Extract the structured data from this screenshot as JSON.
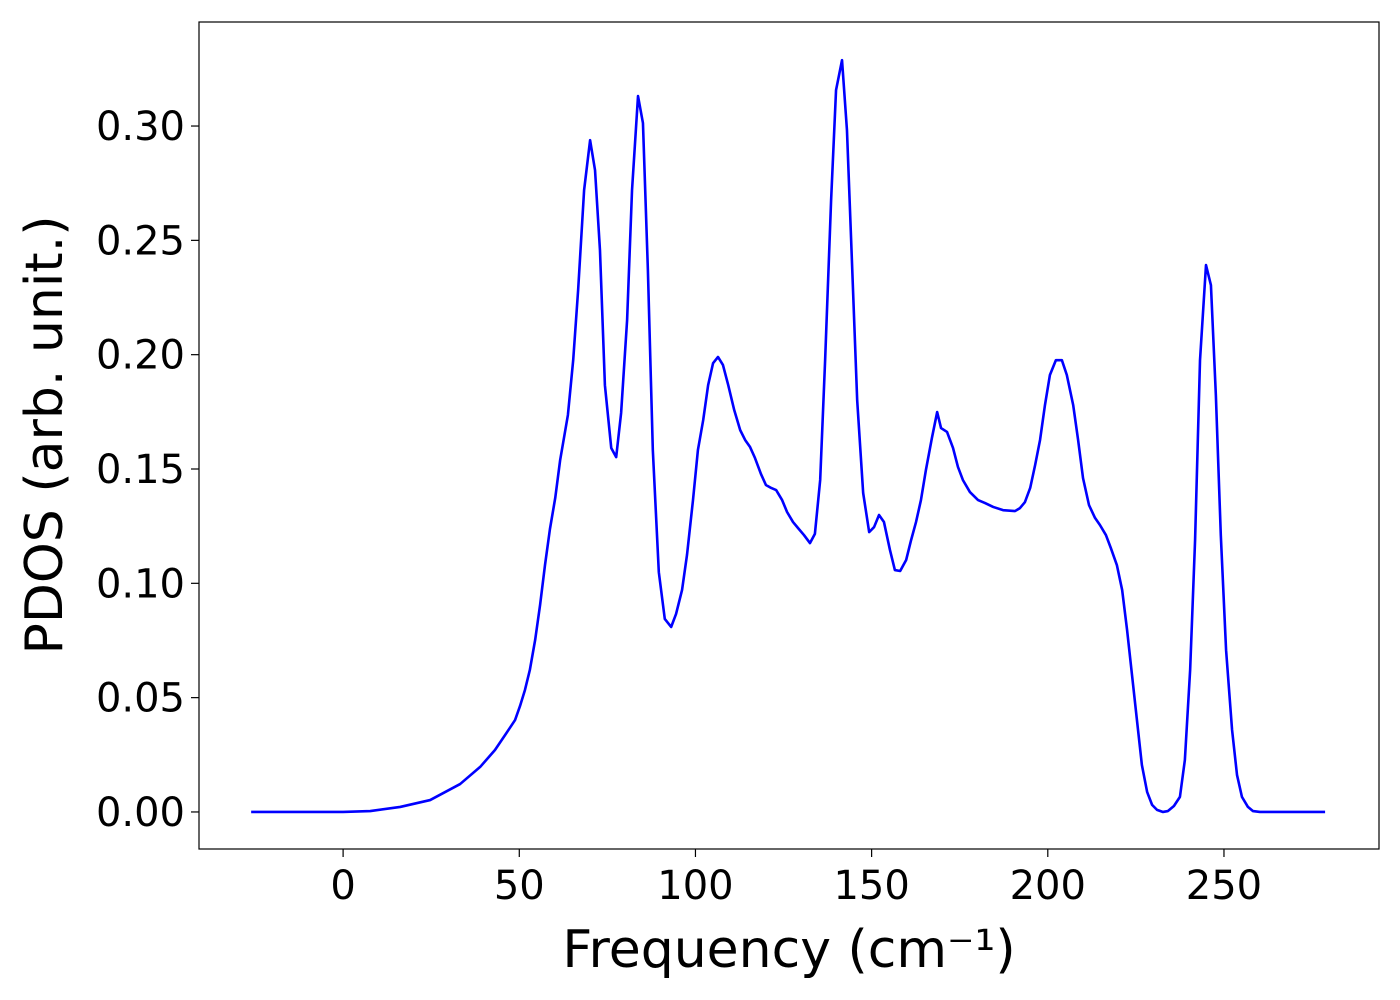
{
  "chart_data": {
    "type": "line",
    "xlabel": "Frequency (cm⁻¹)",
    "ylabel": "PDOS (arb. unit.)",
    "xlim": [
      -40.9,
      294.0
    ],
    "ylim": [
      -0.0162,
      0.3455
    ],
    "xticks": [
      0,
      50,
      100,
      150,
      200,
      250
    ],
    "yticks": [
      {
        "value": 0,
        "label": "0.00"
      },
      {
        "value": 0.05,
        "label": "0.05"
      },
      {
        "value": 0.1,
        "label": "0.10"
      },
      {
        "value": 0.15,
        "label": "0.15"
      },
      {
        "value": 0.2,
        "label": "0.20"
      },
      {
        "value": 0.25,
        "label": "0.25"
      },
      {
        "value": 0.3,
        "label": "0.30"
      }
    ],
    "series": [
      {
        "color": "#0000ff",
        "x": [
          -26.1,
          0,
          7.7,
          16.2,
          24.7,
          33.2,
          38.9,
          43.1,
          46.0,
          48.8,
          50.2,
          51.6,
          53.0,
          54.5,
          55.9,
          57.3,
          58.7,
          60.2,
          61.6,
          63.8,
          65.3,
          66.7,
          68.4,
          70.1,
          71.5,
          72.9,
          74.3,
          76.1,
          77.5,
          78.9,
          80.6,
          82.0,
          83.7,
          85.1,
          86.5,
          87.9,
          89.6,
          91.3,
          93.1,
          94.5,
          96.2,
          97.6,
          99.3,
          100.7,
          102.2,
          103.6,
          105.0,
          106.4,
          107.8,
          109.3,
          111.0,
          112.7,
          114.1,
          115.5,
          116.9,
          118.6,
          120.0,
          121.5,
          122.9,
          124.6,
          126.0,
          127.7,
          129.1,
          130.8,
          132.5,
          133.9,
          135.4,
          136.8,
          138.5,
          139.9,
          141.6,
          143.0,
          144.4,
          145.9,
          147.6,
          149.3,
          150.7,
          152.1,
          153.5,
          155.2,
          156.6,
          158.1,
          159.8,
          161.2,
          162.6,
          164.0,
          165.4,
          167.1,
          168.6,
          169.7,
          171.4,
          173.1,
          174.5,
          175.9,
          177.9,
          180.2,
          182.2,
          184.5,
          187.3,
          190.7,
          192.1,
          193.5,
          195.0,
          196.4,
          197.8,
          199.2,
          200.6,
          202.3,
          204.0,
          205.4,
          207.2,
          208.6,
          210.0,
          211.7,
          213.4,
          214.8,
          216.5,
          217.9,
          219.6,
          221.1,
          222.5,
          223.9,
          225.3,
          226.7,
          228.2,
          229.6,
          231.0,
          232.7,
          234.1,
          235.8,
          237.5,
          238.9,
          240.4,
          241.8,
          243.2,
          244.9,
          246.3,
          247.7,
          249.1,
          250.6,
          252.3,
          253.7,
          255.1,
          256.8,
          258.2,
          260.2,
          278.7
        ],
        "values": [
          0,
          0,
          0.0004,
          0.0022,
          0.0052,
          0.0122,
          0.0197,
          0.0271,
          0.0337,
          0.0402,
          0.0463,
          0.0533,
          0.0621,
          0.0752,
          0.0905,
          0.108,
          0.1237,
          0.1373,
          0.1539,
          0.1736,
          0.1976,
          0.2282,
          0.272,
          0.2938,
          0.2807,
          0.2457,
          0.1867,
          0.1592,
          0.1552,
          0.1745,
          0.2151,
          0.272,
          0.3131,
          0.3013,
          0.237,
          0.1583,
          0.1049,
          0.0844,
          0.0809,
          0.0866,
          0.0971,
          0.1124,
          0.1364,
          0.1583,
          0.1714,
          0.1867,
          0.1963,
          0.199,
          0.1955,
          0.1867,
          0.1758,
          0.167,
          0.1627,
          0.1596,
          0.1548,
          0.1478,
          0.143,
          0.1417,
          0.1408,
          0.1364,
          0.1312,
          0.1268,
          0.1242,
          0.1211,
          0.1176,
          0.1216,
          0.1452,
          0.1976,
          0.2676,
          0.3157,
          0.3288,
          0.2982,
          0.2414,
          0.1801,
          0.1395,
          0.1224,
          0.1246,
          0.1299,
          0.1268,
          0.1146,
          0.1058,
          0.1054,
          0.1102,
          0.1189,
          0.1268,
          0.1364,
          0.1495,
          0.1635,
          0.1749,
          0.1679,
          0.1662,
          0.1592,
          0.1509,
          0.1452,
          0.1399,
          0.1364,
          0.1351,
          0.1334,
          0.132,
          0.1316,
          0.1329,
          0.1355,
          0.1417,
          0.1517,
          0.1627,
          0.178,
          0.1911,
          0.1976,
          0.1976,
          0.1911,
          0.178,
          0.1627,
          0.146,
          0.1342,
          0.1286,
          0.1255,
          0.1211,
          0.1154,
          0.108,
          0.0971,
          0.0796,
          0.0599,
          0.0402,
          0.0206,
          0.0087,
          0.0031,
          0.0009,
          0,
          0.0004,
          0.0026,
          0.0066,
          0.0227,
          0.0621,
          0.1189,
          0.1976,
          0.2392,
          0.2304,
          0.1823,
          0.1211,
          0.0708,
          0.0359,
          0.0162,
          0.0066,
          0.0022,
          0.0004,
          0,
          0
        ]
      }
    ]
  }
}
